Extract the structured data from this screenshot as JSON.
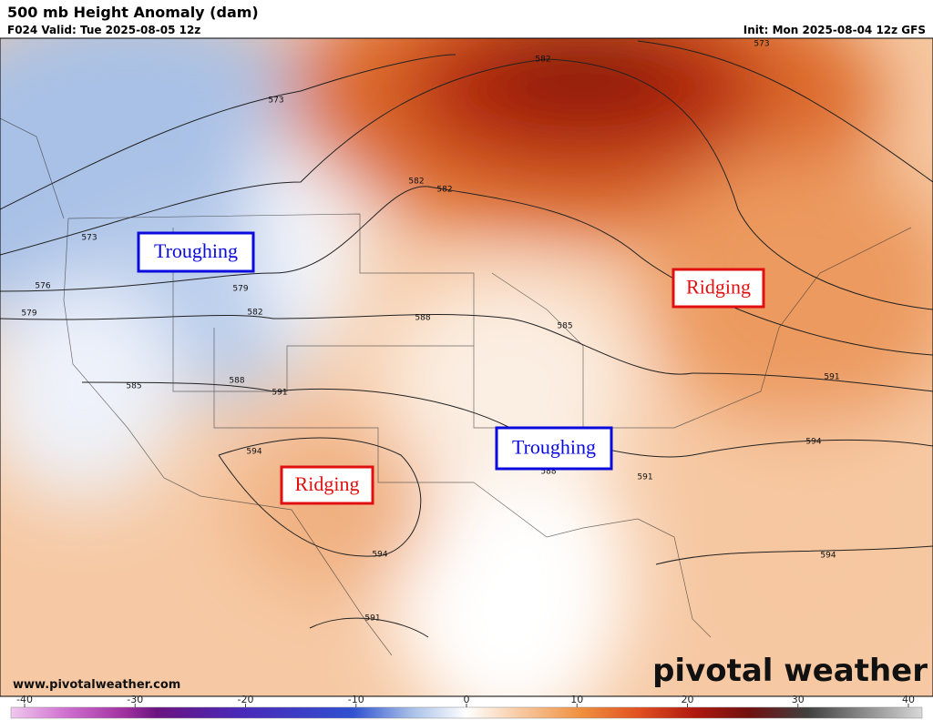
{
  "header": {
    "title": "500 mb Height Anomaly (dam)",
    "valid": "F024 Valid: Tue 2025-08-05 12z",
    "init": "Init: Mon 2025-08-04 12z GFS"
  },
  "annotations": [
    {
      "text": "Troughing",
      "color": "#0a0adc"
    },
    {
      "text": "Ridging",
      "color": "#e01010"
    },
    {
      "text": "Troughing",
      "color": "#0a0adc"
    },
    {
      "text": "Ridging",
      "color": "#e01010"
    }
  ],
  "contour_labels": [
    "573",
    "582",
    "573",
    "582",
    "582",
    "573",
    "576",
    "579",
    "579",
    "582",
    "588",
    "585",
    "588",
    "585",
    "591",
    "591",
    "594",
    "594",
    "588",
    "591",
    "594",
    "594",
    "591"
  ],
  "colorbar": {
    "ticks": [
      -40,
      -30,
      -20,
      -10,
      0,
      10,
      20,
      30,
      40
    ]
  },
  "website": "www.pivotalweather.com",
  "watermark": "pivotal weather"
}
